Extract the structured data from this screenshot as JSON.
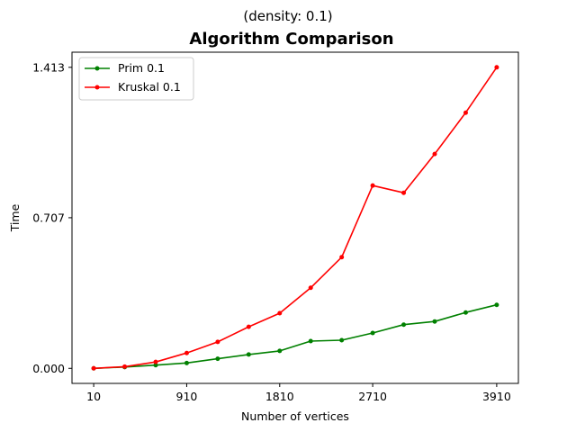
{
  "chart_data": {
    "type": "line",
    "subtitle": "(density: 0.1)",
    "title": "Algorithm Comparison",
    "xlabel": "Number of vertices",
    "ylabel": "Time",
    "xlim": [
      -200,
      4120
    ],
    "ylim": [
      -0.0707,
      1.484
    ],
    "xticks": [
      10,
      910,
      1810,
      2710,
      3910
    ],
    "xtick_labels": [
      "10",
      "910",
      "1810",
      "2710",
      "3910"
    ],
    "yticks": [
      0.0,
      0.707,
      1.413
    ],
    "ytick_labels": [
      "0.000",
      "0.707",
      "1.413"
    ],
    "grid": false,
    "legend_position": "top-left",
    "x": [
      10,
      310,
      610,
      910,
      1210,
      1510,
      1810,
      2110,
      2410,
      2710,
      3010,
      3310,
      3610,
      3910
    ],
    "series": [
      {
        "name": "Prim 0.1",
        "color": "#008000",
        "values": [
          0.0,
          0.006,
          0.015,
          0.025,
          0.045,
          0.065,
          0.082,
          0.128,
          0.132,
          0.166,
          0.205,
          0.22,
          0.262,
          0.298
        ]
      },
      {
        "name": "Kruskal 0.1",
        "color": "#ff0000",
        "values": [
          0.0,
          0.008,
          0.03,
          0.072,
          0.124,
          0.195,
          0.259,
          0.378,
          0.522,
          0.858,
          0.824,
          1.006,
          1.2,
          1.413
        ]
      }
    ]
  }
}
